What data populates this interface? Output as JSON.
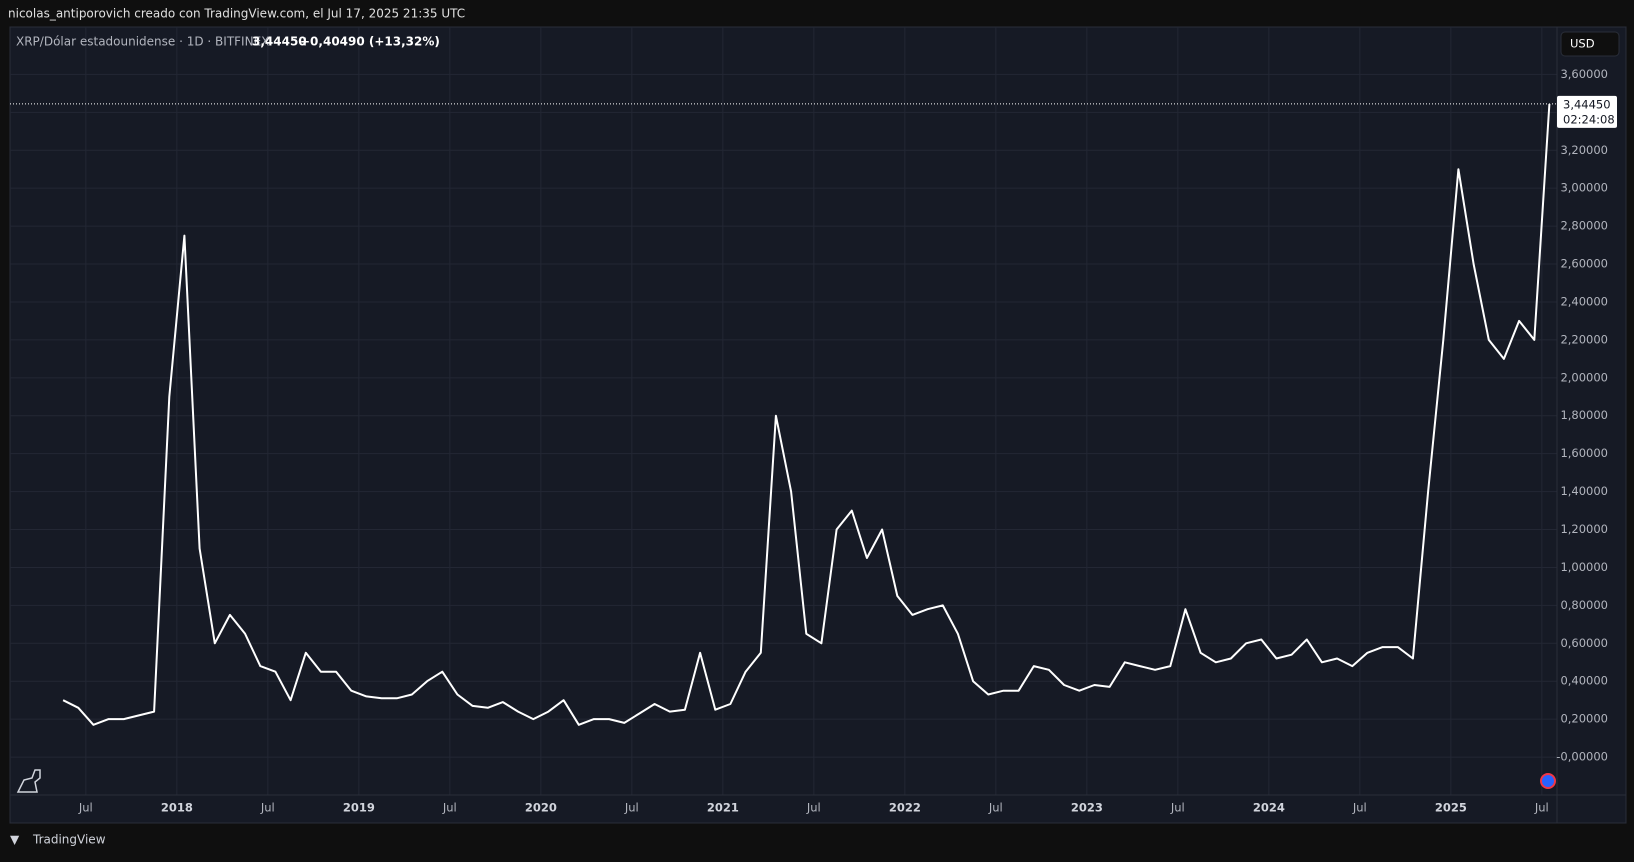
{
  "header": "nicolas_antiporovich creado con TradingView.com, el Jul 17, 2025 21:35 UTC",
  "footer": "TradingView",
  "chart_data": {
    "type": "line",
    "title": "XRP/Dólar estadounidense · 1D · BITFINEX",
    "last_price": {
      "value": 3.4445,
      "label": "3,44450"
    },
    "change": "+0,40490 (+13,32%)",
    "countdown": "02:24:08",
    "currency": "USD",
    "x": [
      "2017-05",
      "2017-06",
      "2017-07",
      "2017-08",
      "2017-09",
      "2017-10",
      "2017-11",
      "2017-12",
      "2018-01",
      "2018-02",
      "2018-03",
      "2018-04",
      "2018-05",
      "2018-06",
      "2018-07",
      "2018-08",
      "2018-09",
      "2018-10",
      "2018-11",
      "2018-12",
      "2019-01",
      "2019-02",
      "2019-03",
      "2019-04",
      "2019-05",
      "2019-06",
      "2019-07",
      "2019-08",
      "2019-09",
      "2019-10",
      "2019-11",
      "2019-12",
      "2020-01",
      "2020-02",
      "2020-03",
      "2020-04",
      "2020-05",
      "2020-06",
      "2020-07",
      "2020-08",
      "2020-09",
      "2020-10",
      "2020-11",
      "2020-12",
      "2021-01",
      "2021-02",
      "2021-03",
      "2021-04",
      "2021-05",
      "2021-06",
      "2021-07",
      "2021-08",
      "2021-09",
      "2021-10",
      "2021-11",
      "2021-12",
      "2022-01",
      "2022-02",
      "2022-03",
      "2022-04",
      "2022-05",
      "2022-06",
      "2022-07",
      "2022-08",
      "2022-09",
      "2022-10",
      "2022-11",
      "2022-12",
      "2023-01",
      "2023-02",
      "2023-03",
      "2023-04",
      "2023-05",
      "2023-06",
      "2023-07",
      "2023-08",
      "2023-09",
      "2023-10",
      "2023-11",
      "2023-12",
      "2024-01",
      "2024-02",
      "2024-03",
      "2024-04",
      "2024-05",
      "2024-06",
      "2024-07",
      "2024-08",
      "2024-09",
      "2024-10",
      "2024-11",
      "2024-12",
      "2025-01",
      "2025-02",
      "2025-03",
      "2025-04",
      "2025-05",
      "2025-06",
      "2025-07"
    ],
    "series": [
      {
        "name": "XRP/USD",
        "color": "#ffffff",
        "values": [
          0.3,
          0.26,
          0.17,
          0.2,
          0.2,
          0.22,
          0.24,
          1.9,
          2.75,
          1.1,
          0.6,
          0.75,
          0.65,
          0.48,
          0.45,
          0.3,
          0.55,
          0.45,
          0.45,
          0.35,
          0.32,
          0.31,
          0.31,
          0.33,
          0.4,
          0.45,
          0.33,
          0.27,
          0.26,
          0.29,
          0.24,
          0.2,
          0.24,
          0.3,
          0.17,
          0.2,
          0.2,
          0.18,
          0.23,
          0.28,
          0.24,
          0.25,
          0.55,
          0.25,
          0.28,
          0.45,
          0.55,
          1.8,
          1.4,
          0.65,
          0.6,
          1.2,
          1.3,
          1.05,
          1.2,
          0.85,
          0.75,
          0.78,
          0.8,
          0.65,
          0.4,
          0.33,
          0.35,
          0.35,
          0.48,
          0.46,
          0.38,
          0.35,
          0.38,
          0.37,
          0.5,
          0.48,
          0.46,
          0.48,
          0.78,
          0.55,
          0.5,
          0.52,
          0.6,
          0.62,
          0.52,
          0.54,
          0.62,
          0.5,
          0.52,
          0.48,
          0.55,
          0.58,
          0.58,
          0.52,
          1.4,
          2.2,
          3.1,
          2.6,
          2.2,
          2.1,
          2.3,
          2.2,
          3.4445
        ]
      }
    ],
    "xlim": [
      "2017-02",
      "2025-08"
    ],
    "ylim": [
      -0.2,
      3.85
    ],
    "xticks": [
      {
        "value": "2017-07",
        "label": "Jul"
      },
      {
        "value": "2018-01",
        "label": "2018"
      },
      {
        "value": "2018-07",
        "label": "Jul"
      },
      {
        "value": "2019-01",
        "label": "2019"
      },
      {
        "value": "2019-07",
        "label": "Jul"
      },
      {
        "value": "2020-01",
        "label": "2020"
      },
      {
        "value": "2020-07",
        "label": "Jul"
      },
      {
        "value": "2021-01",
        "label": "2021"
      },
      {
        "value": "2021-07",
        "label": "Jul"
      },
      {
        "value": "2022-01",
        "label": "2022"
      },
      {
        "value": "2022-07",
        "label": "Jul"
      },
      {
        "value": "2023-01",
        "label": "2023"
      },
      {
        "value": "2023-07",
        "label": "Jul"
      },
      {
        "value": "2024-01",
        "label": "2024"
      },
      {
        "value": "2024-07",
        "label": "Jul"
      },
      {
        "value": "2025-01",
        "label": "2025"
      },
      {
        "value": "2025-07",
        "label": "Jul"
      }
    ],
    "yticks": [
      {
        "value": 0,
        "label": "-0,00000"
      },
      {
        "value": 0.2,
        "label": "0,20000"
      },
      {
        "value": 0.4,
        "label": "0,40000"
      },
      {
        "value": 0.6,
        "label": "0,60000"
      },
      {
        "value": 0.8,
        "label": "0,80000"
      },
      {
        "value": 1,
        "label": "1,00000"
      },
      {
        "value": 1.2,
        "label": "1,20000"
      },
      {
        "value": 1.4,
        "label": "1,40000"
      },
      {
        "value": 1.6,
        "label": "1,60000"
      },
      {
        "value": 1.8,
        "label": "1,80000"
      },
      {
        "value": 2,
        "label": "2,00000"
      },
      {
        "value": 2.2,
        "label": "2,20000"
      },
      {
        "value": 2.4,
        "label": "2,40000"
      },
      {
        "value": 2.6,
        "label": "2,60000"
      },
      {
        "value": 2.8,
        "label": "2,80000"
      },
      {
        "value": 3,
        "label": "3,00000"
      },
      {
        "value": 3.2,
        "label": "3,20000"
      },
      {
        "value": 3.4,
        "label": "3,40000"
      },
      {
        "value": 3.6,
        "label": "3,60000"
      }
    ],
    "grid": true
  }
}
